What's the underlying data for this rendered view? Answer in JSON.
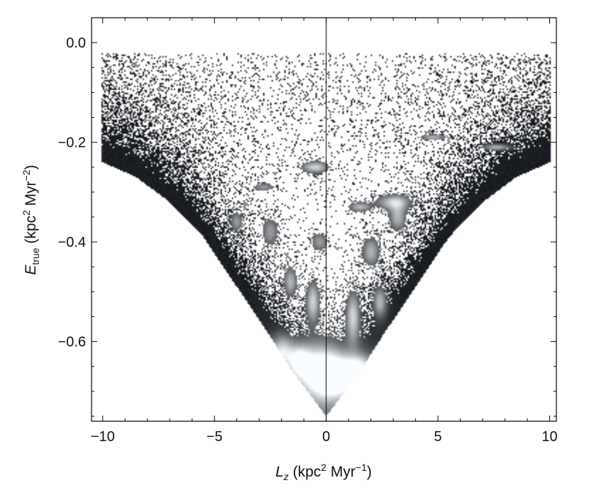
{
  "chart_data": {
    "type": "heatmap",
    "xlabel": {
      "symbol": "L",
      "sub": "z",
      "units_pre": " (kpc",
      "sup1": "2",
      "units_mid": " Myr",
      "sup2": "−1",
      "units_post": ")"
    },
    "ylabel": {
      "symbol": "E",
      "sub": "true",
      "units_pre": " (kpc",
      "sup1": "2",
      "units_mid": " Myr",
      "sup2": "−2",
      "units_post": ")"
    },
    "xlim": [
      -10.5,
      10.3
    ],
    "ylim": [
      -0.76,
      0.05
    ],
    "x_ticks": [
      {
        "value": -10,
        "label": "−10"
      },
      {
        "value": -5,
        "label": "−5"
      },
      {
        "value": 0,
        "label": "0"
      },
      {
        "value": 5,
        "label": "5"
      },
      {
        "value": 10,
        "label": "10"
      }
    ],
    "y_ticks": [
      {
        "value": 0.0,
        "label": "0.0"
      },
      {
        "value": -0.2,
        "label": "−0.2"
      },
      {
        "value": -0.4,
        "label": "−0.4"
      },
      {
        "value": -0.6,
        "label": "−0.6"
      }
    ],
    "vertical_reference_line_x": 0,
    "colormap": {
      "empty": "#ffffff",
      "low": "#000000",
      "high": "#ffffff",
      "mid": "#5a6068"
    },
    "envelope": {
      "apex": [
        0,
        -0.75
      ],
      "left_edge": [
        [
          -0.5,
          -0.72
        ],
        [
          -1.5,
          -0.66
        ],
        [
          -2.5,
          -0.59
        ],
        [
          -4.0,
          -0.49
        ],
        [
          -5.5,
          -0.39
        ],
        [
          -7.0,
          -0.32
        ],
        [
          -8.5,
          -0.27
        ],
        [
          -10.0,
          -0.24
        ]
      ],
      "right_edge": [
        [
          0.5,
          -0.72
        ],
        [
          1.5,
          -0.66
        ],
        [
          2.5,
          -0.59
        ],
        [
          4.0,
          -0.49
        ],
        [
          5.5,
          -0.39
        ],
        [
          7.0,
          -0.32
        ],
        [
          8.5,
          -0.27
        ],
        [
          10.0,
          -0.24
        ]
      ]
    },
    "grid": false
  }
}
